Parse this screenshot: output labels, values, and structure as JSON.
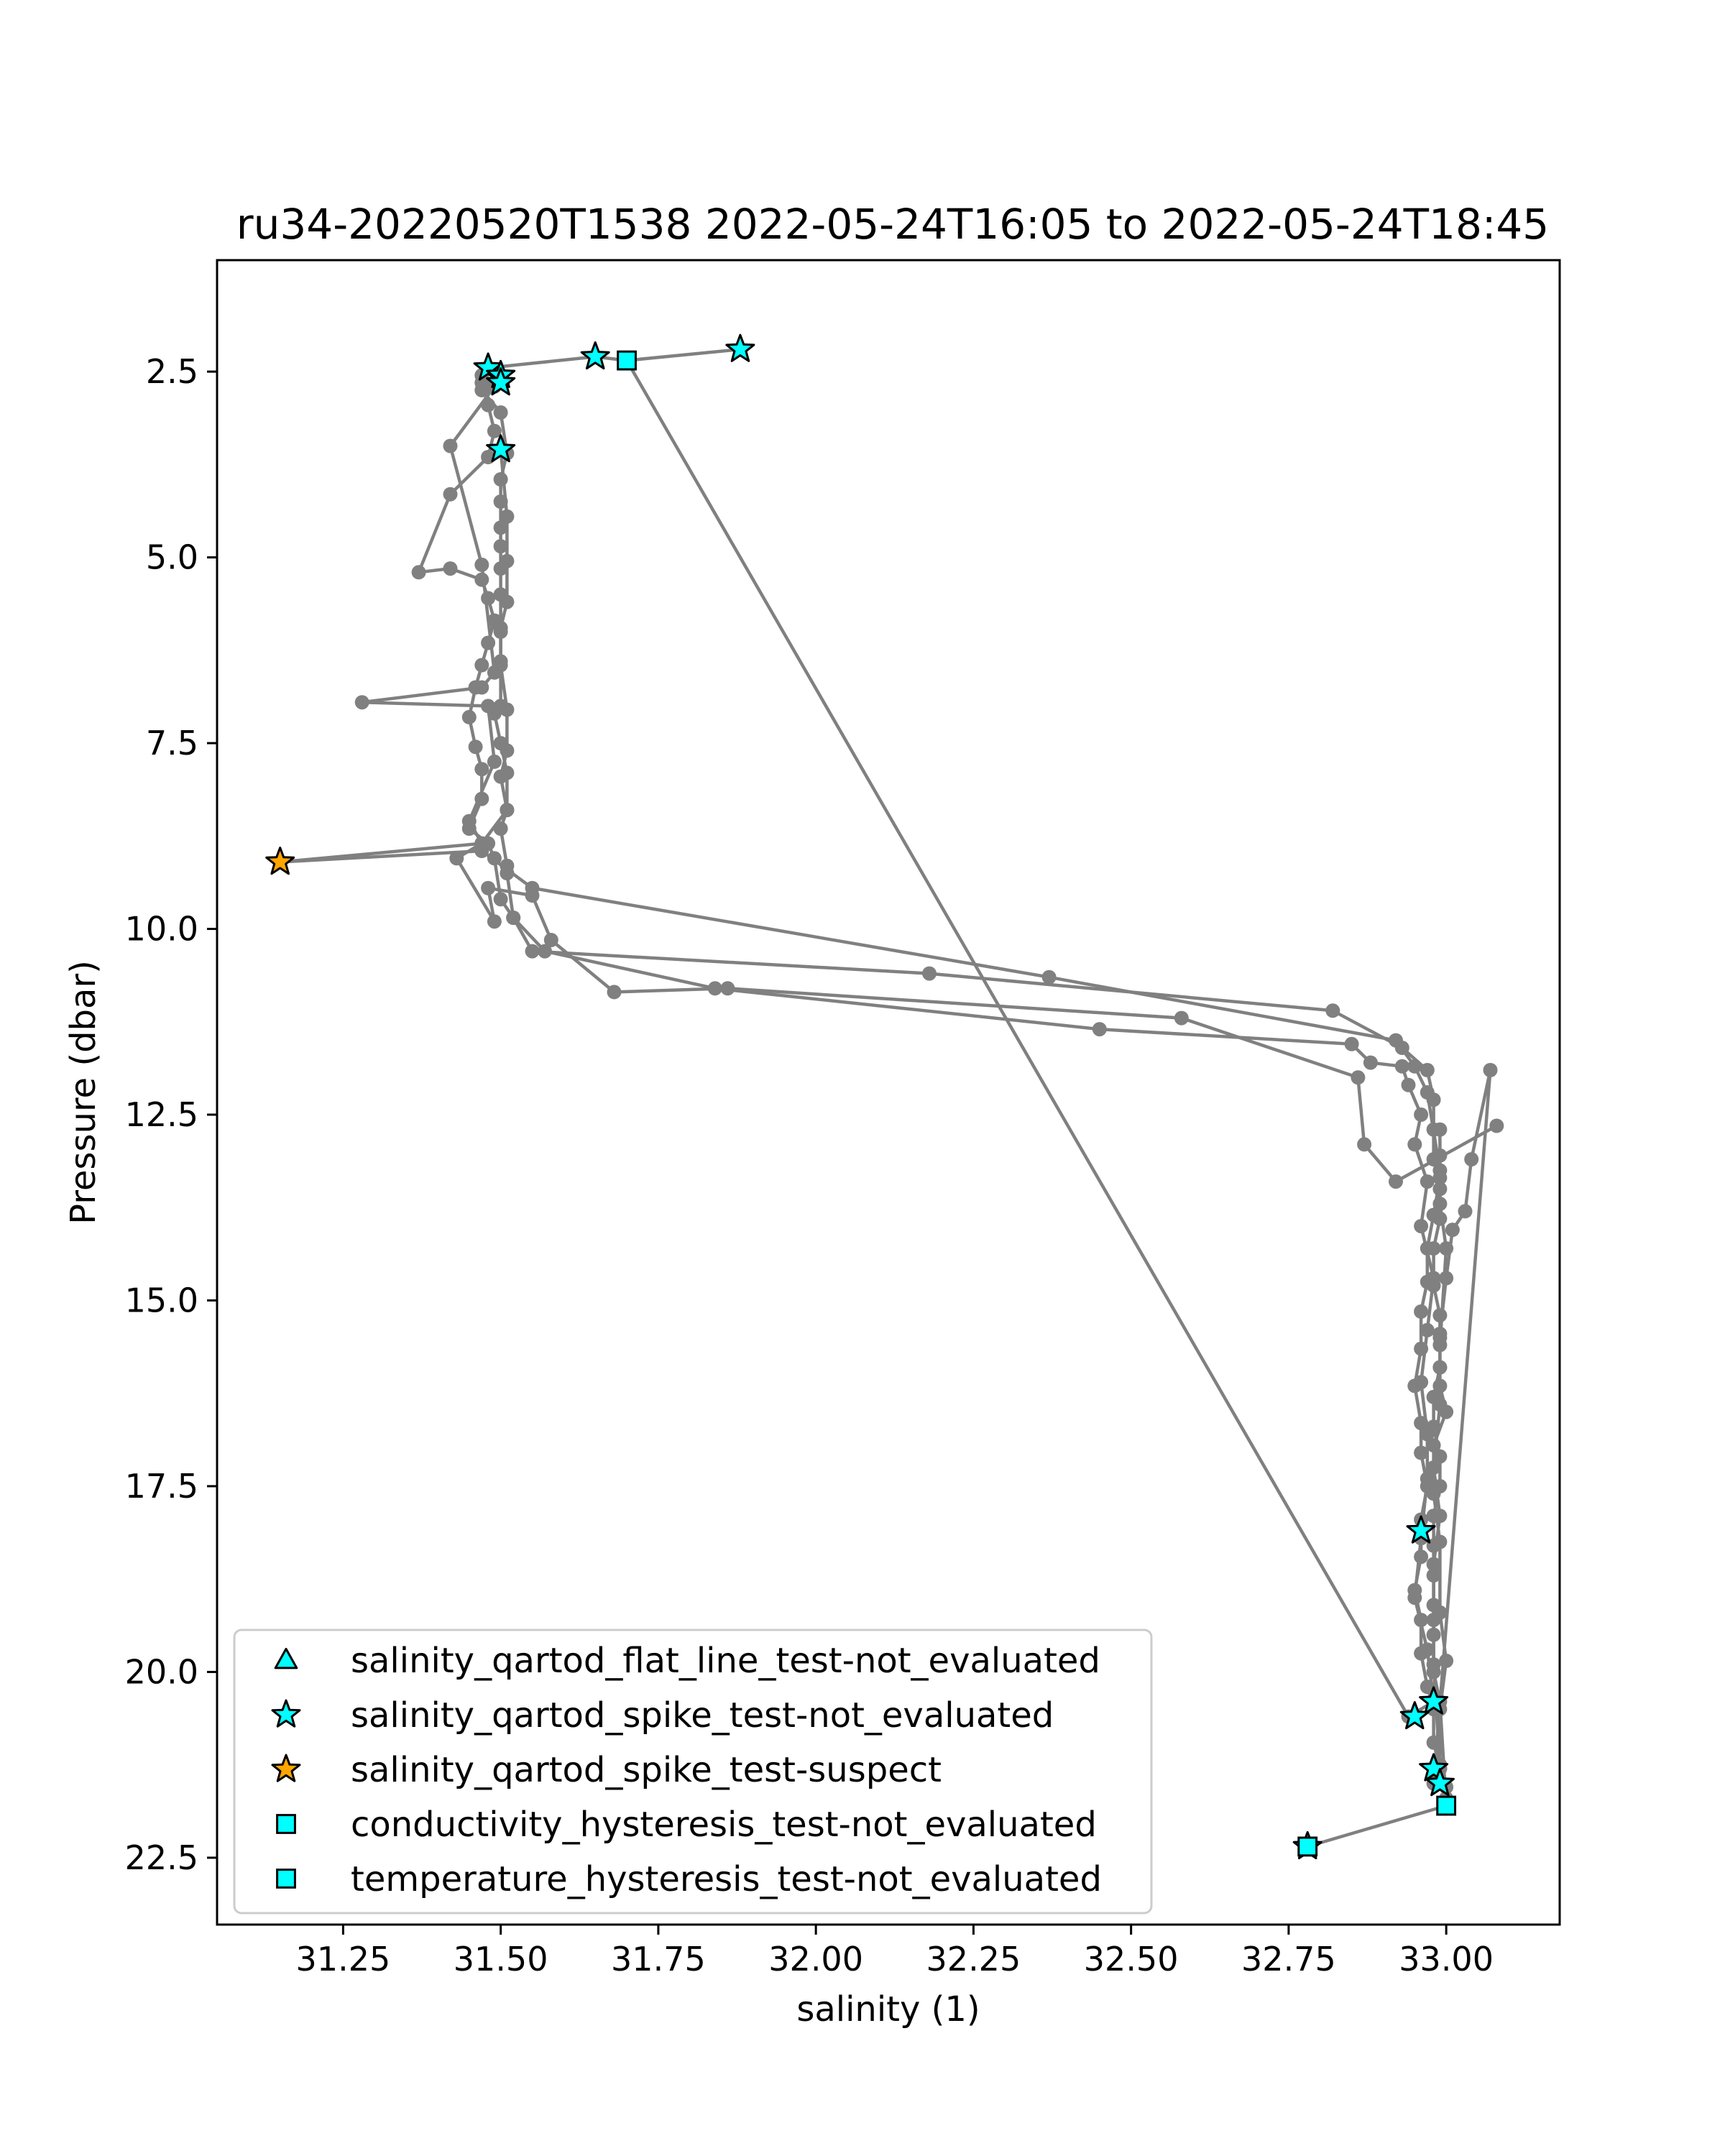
{
  "chart_data": {
    "type": "scatter",
    "title": "ru34-20220520T1538 2022-05-24T16:05 to 2022-05-24T18:45",
    "xlabel": "salinity (1)",
    "ylabel": "Pressure (dbar)",
    "xlim": [
      31.05,
      33.18
    ],
    "ylim": [
      23.4,
      1.0
    ],
    "y_inverted": true,
    "grid": false,
    "legend_position": "lower-left",
    "xticks": [
      31.25,
      31.5,
      31.75,
      32.0,
      32.25,
      32.5,
      32.75,
      33.0
    ],
    "xtick_labels": [
      "31.25",
      "31.50",
      "31.75",
      "32.00",
      "32.25",
      "32.50",
      "32.75",
      "33.00"
    ],
    "yticks": [
      2.5,
      5.0,
      7.5,
      10.0,
      12.5,
      15.0,
      17.5,
      20.0,
      22.5
    ],
    "ytick_labels": [
      "2.5",
      "5.0",
      "7.5",
      "10.0",
      "12.5",
      "15.0",
      "17.5",
      "20.0",
      "22.5"
    ],
    "colors": {
      "line": "#808080",
      "not_evaluated": "#00ffff",
      "suspect": "#ffa500",
      "marker_edge": "#000000"
    },
    "profile_series": {
      "name": "",
      "x": [
        31.88,
        31.7,
        31.65,
        31.48,
        31.5,
        31.49,
        31.47,
        31.5,
        31.51,
        31.5,
        31.5,
        31.5,
        31.5,
        31.5,
        31.5,
        31.5,
        31.5,
        31.5,
        31.49,
        31.5,
        31.51,
        31.51,
        31.5,
        31.51,
        31.51,
        31.52,
        31.55,
        32.18,
        32.82,
        32.93,
        32.97,
        32.98,
        32.98,
        32.98,
        32.99,
        32.99,
        32.98,
        32.98,
        32.99,
        32.99,
        32.99,
        32.98,
        32.98,
        32.99,
        32.99,
        32.98,
        32.98,
        32.98,
        32.98,
        32.98,
        32.98,
        32.99,
        33.0,
        32.78
      ],
      "y": [
        2.2,
        2.35,
        2.3,
        2.45,
        2.55,
        2.65,
        2.75,
        3.05,
        3.6,
        3.95,
        4.25,
        4.6,
        4.85,
        5.15,
        5.5,
        6.0,
        6.4,
        7.0,
        7.1,
        7.5,
        7.9,
        8.4,
        8.65,
        9.15,
        9.25,
        9.85,
        10.3,
        10.6,
        11.1,
        11.6,
        11.9,
        12.3,
        12.7,
        13.1,
        13.5,
        13.9,
        14.3,
        14.8,
        15.2,
        15.5,
        15.9,
        16.3,
        16.7,
        17.1,
        17.5,
        17.9,
        18.3,
        18.7,
        19.1,
        19.5,
        20.0,
        20.4,
        21.8,
        22.35
      ]
    },
    "profile_series_2": {
      "name": "",
      "x": [
        31.7,
        32.94,
        32.98,
        32.97,
        32.95,
        32.96,
        32.97,
        32.97,
        32.96,
        32.97,
        32.98,
        32.96,
        32.97,
        32.95,
        32.96,
        32.94,
        32.93,
        32.88,
        32.85,
        32.45,
        31.84,
        31.57,
        31.52,
        31.5,
        31.49,
        31.48,
        31.45,
        31.47,
        31.47,
        31.46,
        31.45,
        31.46,
        31.47,
        31.48,
        31.49,
        31.48,
        31.47,
        31.42,
        31.37,
        31.42,
        31.48,
        31.49,
        31.48,
        31.47,
        31.47,
        31.49,
        31.5
      ],
      "y": [
        2.35,
        20.6,
        20.4,
        19.7,
        19.0,
        18.2,
        17.4,
        16.8,
        16.1,
        15.4,
        14.7,
        14.0,
        13.4,
        12.9,
        12.5,
        12.1,
        11.85,
        11.8,
        11.55,
        11.35,
        10.8,
        10.3,
        9.85,
        9.6,
        9.05,
        8.85,
        8.65,
        8.25,
        7.85,
        7.55,
        7.15,
        6.75,
        6.45,
        6.15,
        5.85,
        5.55,
        5.3,
        5.15,
        5.2,
        4.15,
        3.65,
        3.3,
        2.95,
        2.65,
        2.55,
        2.7,
        2.55
      ]
    },
    "profile_series_3": {
      "name": "",
      "x": [
        31.49,
        31.42,
        31.47,
        31.49,
        31.47,
        31.28,
        31.48,
        31.49,
        31.45,
        31.47,
        31.15,
        31.47,
        31.55,
        32.37,
        32.92,
        32.95,
        32.97,
        32.99,
        32.99,
        33.0,
        32.99,
        32.99,
        33.0,
        32.98,
        32.98,
        32.99,
        32.99,
        33.0,
        32.99,
        32.99,
        32.98,
        32.98,
        33.07,
        33.04,
        33.03,
        33.01,
        33.0,
        32.99,
        32.99,
        32.99,
        32.98,
        32.99,
        32.98,
        32.98,
        32.98,
        32.99
      ],
      "y": [
        2.7,
        3.5,
        5.1,
        6.55,
        6.75,
        6.95,
        7.0,
        7.75,
        8.55,
        8.85,
        9.1,
        8.95,
        9.45,
        10.65,
        11.5,
        11.85,
        12.2,
        13.25,
        13.7,
        14.3,
        15.6,
        16.15,
        16.5,
        16.95,
        17.6,
        18.25,
        19.2,
        19.85,
        20.5,
        21.25,
        21.4,
        21.5,
        11.9,
        13.1,
        13.8,
        14.05,
        14.7,
        15.45,
        15.9,
        16.4,
        17.25,
        17.9,
        18.55,
        19.3,
        19.9,
        21.3
      ]
    },
    "profile_series_4": {
      "name": "",
      "x": [
        33.08,
        32.92,
        32.87,
        32.86,
        32.58,
        31.86,
        31.68,
        31.58,
        31.55,
        31.48,
        31.49,
        31.43,
        31.47,
        31.51,
        31.5,
        31.51,
        31.51,
        31.5,
        31.5,
        31.51,
        31.51,
        31.51,
        31.5
      ],
      "y": [
        12.65,
        13.4,
        12.9,
        12.0,
        11.2,
        10.8,
        10.85,
        10.15,
        9.55,
        9.45,
        9.9,
        9.05,
        8.85,
        8.4,
        7.95,
        7.6,
        7.05,
        6.45,
        5.95,
        5.6,
        5.05,
        4.45,
        3.55
      ]
    },
    "profile_series_5": {
      "name": "",
      "x": [
        33.0,
        33.0,
        32.99,
        32.98,
        32.98,
        32.97,
        32.96,
        32.96,
        32.95,
        32.96,
        32.96,
        32.97,
        32.96,
        32.96,
        32.95,
        32.96,
        32.96,
        32.97,
        32.97,
        32.98,
        32.99,
        32.99,
        32.99
      ],
      "y": [
        21.7,
        21.55,
        21.3,
        20.95,
        20.5,
        20.2,
        19.75,
        19.3,
        18.9,
        18.45,
        17.95,
        17.5,
        17.05,
        16.65,
        16.15,
        15.65,
        15.15,
        14.75,
        14.3,
        13.85,
        13.35,
        13.05,
        12.7
      ]
    },
    "flag_points": [
      {
        "label": "salinity_qartod_spike_test-not_evaluated",
        "marker": "star",
        "x": [
          31.88,
          31.65,
          31.48,
          31.5,
          31.5,
          31.5,
          32.96,
          32.98,
          32.95,
          32.98,
          32.99,
          32.78
        ],
        "y": [
          2.2,
          2.3,
          2.45,
          2.55,
          2.65,
          3.55,
          18.1,
          20.4,
          20.6,
          21.3,
          21.5,
          22.35
        ]
      },
      {
        "label": "salinity_qartod_spike_test-suspect",
        "marker": "star",
        "x": [
          31.15
        ],
        "y": [
          9.1
        ]
      },
      {
        "label": "conductivity_hysteresis_test-not_evaluated",
        "marker": "square",
        "x": [
          31.7,
          33.0,
          32.78
        ],
        "y": [
          2.35,
          21.8,
          22.35
        ]
      }
    ],
    "legend": [
      {
        "label": "salinity_qartod_flat_line_test-not_evaluated",
        "marker": "triangle",
        "color": "#00ffff"
      },
      {
        "label": "salinity_qartod_spike_test-not_evaluated",
        "marker": "star",
        "color": "#00ffff"
      },
      {
        "label": "salinity_qartod_spike_test-suspect",
        "marker": "star",
        "color": "#ffa500"
      },
      {
        "label": "conductivity_hysteresis_test-not_evaluated",
        "marker": "square",
        "color": "#00ffff"
      },
      {
        "label": "temperature_hysteresis_test-not_evaluated",
        "marker": "square",
        "color": "#00ffff"
      }
    ]
  }
}
